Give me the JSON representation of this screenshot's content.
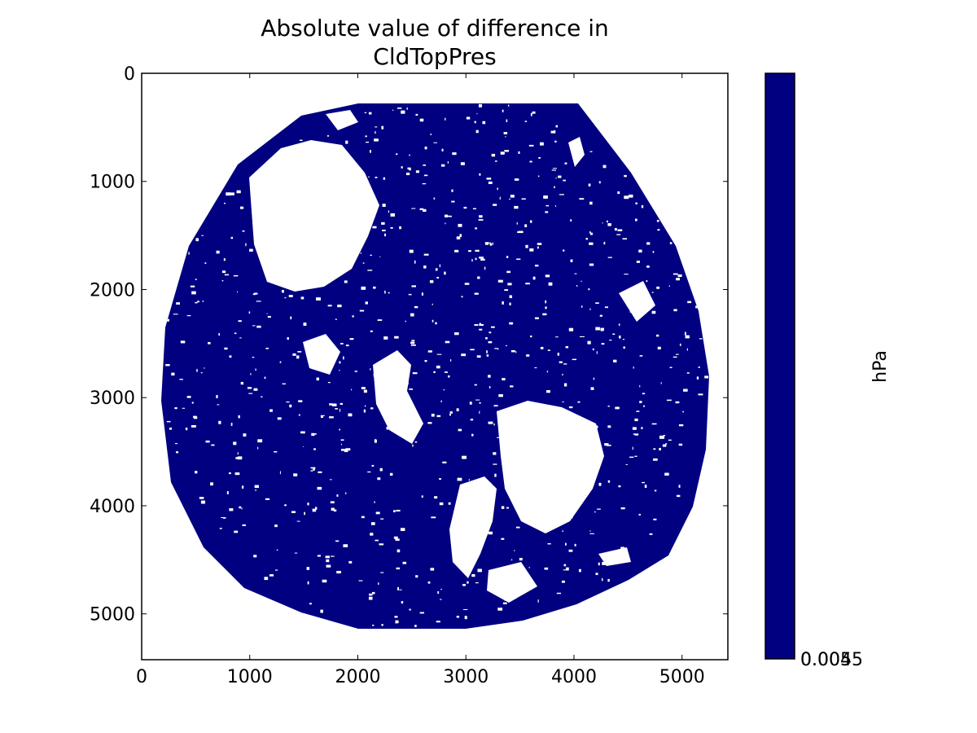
{
  "chart_data": {
    "type": "heatmap",
    "title_line1": "Absolute value of difference in",
    "title_line2": "CldTopPres",
    "xlabel": "",
    "ylabel": "",
    "xlim": [
      0,
      5424
    ],
    "ylim": [
      5424,
      0
    ],
    "x_ticks": [
      0,
      1000,
      2000,
      3000,
      4000,
      5000
    ],
    "y_ticks": [
      0,
      1000,
      2000,
      3000,
      4000,
      5000
    ],
    "x_tick_labels": [
      "0",
      "1000",
      "2000",
      "3000",
      "4000",
      "5000"
    ],
    "y_tick_labels": [
      "0",
      "1000",
      "2000",
      "3000",
      "4000",
      "5000"
    ],
    "disk_center": [
      2712,
      2712
    ],
    "disk_radius": 2540,
    "data_value_color": "#000080",
    "missing_color": "#ffffff",
    "colorbar": {
      "label": "hPa",
      "color": "#000080",
      "overlapping_tick_text": "0.0045",
      "overlapping_tick_text_2": "0.005"
    },
    "grid": false
  }
}
